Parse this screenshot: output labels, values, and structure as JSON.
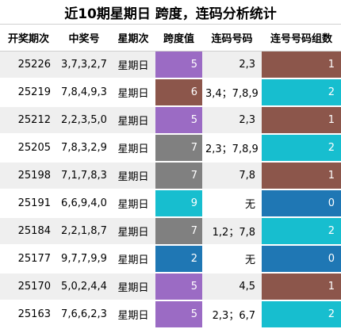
{
  "title": "近10期星期日 跨度，连码分析统计",
  "columns": [
    "开奖期次",
    "中奖号",
    "星期次",
    "跨度值",
    "连码号码",
    "连号号码组数"
  ],
  "colors": {
    "span": {
      "5": "#9b6bc4",
      "6": "#8c564b",
      "7": "#808080",
      "9": "#17becf",
      "2": "#1f77b4"
    },
    "count": {
      "1": "#8c564b",
      "2": "#17becf",
      "0": "#1f77b4"
    }
  },
  "rows": [
    {
      "period": "25226",
      "numbers": "3,7,3,2,7",
      "weekday": "星期日",
      "span": "5",
      "lian": "2,3",
      "count": "1"
    },
    {
      "period": "25219",
      "numbers": "7,8,4,9,3",
      "weekday": "星期日",
      "span": "6",
      "lian": "3,4；7,8,9",
      "count": "2"
    },
    {
      "period": "25212",
      "numbers": "2,2,3,5,0",
      "weekday": "星期日",
      "span": "5",
      "lian": "2,3",
      "count": "1"
    },
    {
      "period": "25205",
      "numbers": "7,8,3,2,9",
      "weekday": "星期日",
      "span": "7",
      "lian": "2,3；7,8,9",
      "count": "2"
    },
    {
      "period": "25198",
      "numbers": "7,1,7,8,3",
      "weekday": "星期日",
      "span": "7",
      "lian": "7,8",
      "count": "1"
    },
    {
      "period": "25191",
      "numbers": "6,6,9,4,0",
      "weekday": "星期日",
      "span": "9",
      "lian": "无",
      "count": "0"
    },
    {
      "period": "25184",
      "numbers": "2,2,1,8,7",
      "weekday": "星期日",
      "span": "7",
      "lian": "1,2；7,8",
      "count": "2"
    },
    {
      "period": "25177",
      "numbers": "9,7,7,9,9",
      "weekday": "星期日",
      "span": "2",
      "lian": "无",
      "count": "0"
    },
    {
      "period": "25170",
      "numbers": "5,0,2,4,4",
      "weekday": "星期日",
      "span": "5",
      "lian": "4,5",
      "count": "1"
    },
    {
      "period": "25163",
      "numbers": "7,6,6,2,3",
      "weekday": "星期日",
      "span": "5",
      "lian": "2,3；6,7",
      "count": "2"
    }
  ]
}
